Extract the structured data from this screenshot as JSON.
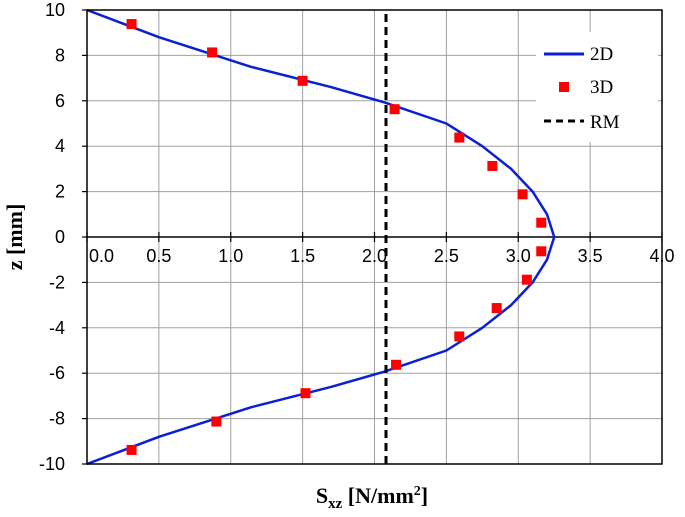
{
  "chart_data": {
    "type": "line",
    "xlabel": {
      "main": "S",
      "sub": "xz",
      "unit_open": " [N/mm",
      "sup": "2",
      "unit_close": "]"
    },
    "ylabel": "z [mm]",
    "xlim": [
      0,
      4
    ],
    "ylim": [
      -10,
      10
    ],
    "xticks": [
      "0.0",
      "0.5",
      "1.0",
      "1.5",
      "2.0",
      "2.5",
      "3.0",
      "3.5",
      "4.0"
    ],
    "yticks": [
      "10",
      "8",
      "6",
      "4",
      "2",
      "0",
      "-2",
      "-4",
      "-6",
      "-8",
      "-10"
    ],
    "grid": true,
    "legend_position": "top-right",
    "series": [
      {
        "name": "2D",
        "style": "line",
        "color": "#0a1fd6",
        "points": [
          [
            0,
            10
          ],
          [
            0.5,
            8.8
          ],
          [
            1.14,
            7.5
          ],
          [
            1.7,
            6.6
          ],
          [
            2.07,
            5.93
          ],
          [
            2.5,
            5.0
          ],
          [
            2.75,
            4.0
          ],
          [
            2.95,
            3.0
          ],
          [
            3.1,
            2.0
          ],
          [
            3.2,
            1.0
          ],
          [
            3.25,
            0.0
          ],
          [
            3.2,
            -1.0
          ],
          [
            3.1,
            -2.0
          ],
          [
            2.95,
            -3.0
          ],
          [
            2.75,
            -4.0
          ],
          [
            2.5,
            -5.0
          ],
          [
            2.07,
            -5.93
          ],
          [
            1.7,
            -6.6
          ],
          [
            1.14,
            -7.5
          ],
          [
            0.5,
            -8.8
          ],
          [
            0,
            -10
          ]
        ]
      },
      {
        "name": "3D",
        "style": "markers",
        "color": "#ff0000",
        "points": [
          [
            0.31,
            9.38
          ],
          [
            0.87,
            8.13
          ],
          [
            1.5,
            6.88
          ],
          [
            2.14,
            5.63
          ],
          [
            2.59,
            4.38
          ],
          [
            2.82,
            3.13
          ],
          [
            3.03,
            1.88
          ],
          [
            3.16,
            0.63
          ],
          [
            3.16,
            -0.63
          ],
          [
            3.06,
            -1.88
          ],
          [
            2.85,
            -3.13
          ],
          [
            2.59,
            -4.38
          ],
          [
            2.15,
            -5.63
          ],
          [
            1.52,
            -6.88
          ],
          [
            0.9,
            -8.13
          ],
          [
            0.31,
            -9.38
          ]
        ]
      },
      {
        "name": "RM",
        "style": "dashed",
        "color": "#000000",
        "points": [
          [
            2.08,
            -10
          ],
          [
            2.08,
            10
          ]
        ]
      }
    ]
  }
}
